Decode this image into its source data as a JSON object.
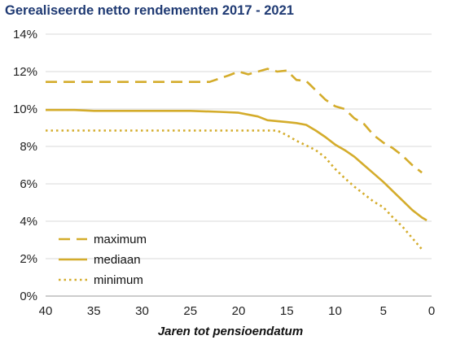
{
  "chart_data": {
    "type": "line",
    "title": "Gerealiseerde netto rendementen 2017 - 2021",
    "xlabel": "Jaren tot pensioendatum",
    "ylabel": "",
    "xlim": [
      40,
      0
    ],
    "x_reversed": true,
    "ylim": [
      0,
      14
    ],
    "x_ticks": [
      40,
      35,
      30,
      25,
      20,
      15,
      10,
      5,
      0
    ],
    "y_ticks": [
      0,
      2,
      4,
      6,
      8,
      10,
      12,
      14
    ],
    "y_tick_labels": [
      "0%",
      "2%",
      "4%",
      "6%",
      "8%",
      "10%",
      "12%",
      "14%"
    ],
    "grid": "horizontal",
    "legend_position": "bottom-left",
    "series": [
      {
        "name": "maximum",
        "style": "dashed",
        "color": "#d4ac2b",
        "points": [
          [
            40,
            11.45
          ],
          [
            35,
            11.45
          ],
          [
            30,
            11.45
          ],
          [
            25,
            11.45
          ],
          [
            23,
            11.45
          ],
          [
            21,
            11.8
          ],
          [
            20,
            12.0
          ],
          [
            19,
            11.85
          ],
          [
            18,
            12.0
          ],
          [
            17,
            12.15
          ],
          [
            16,
            12.0
          ],
          [
            15,
            12.05
          ],
          [
            14,
            11.55
          ],
          [
            13,
            11.5
          ],
          [
            12,
            11.0
          ],
          [
            11,
            10.5
          ],
          [
            10,
            10.15
          ],
          [
            9,
            10.0
          ],
          [
            8,
            9.5
          ],
          [
            7,
            9.2
          ],
          [
            6,
            8.6
          ],
          [
            5,
            8.2
          ],
          [
            4,
            7.9
          ],
          [
            3,
            7.5
          ],
          [
            2,
            7.0
          ],
          [
            1,
            6.6
          ]
        ]
      },
      {
        "name": "mediaan",
        "style": "solid",
        "color": "#d4ac2b",
        "points": [
          [
            40,
            9.95
          ],
          [
            37,
            9.95
          ],
          [
            35,
            9.9
          ],
          [
            30,
            9.9
          ],
          [
            25,
            9.9
          ],
          [
            22,
            9.85
          ],
          [
            20,
            9.8
          ],
          [
            18,
            9.6
          ],
          [
            17,
            9.4
          ],
          [
            15,
            9.3
          ],
          [
            14,
            9.25
          ],
          [
            13,
            9.15
          ],
          [
            12,
            8.85
          ],
          [
            11,
            8.5
          ],
          [
            10,
            8.1
          ],
          [
            9,
            7.8
          ],
          [
            8,
            7.45
          ],
          [
            7,
            7.0
          ],
          [
            6,
            6.55
          ],
          [
            5,
            6.1
          ],
          [
            4,
            5.6
          ],
          [
            3,
            5.1
          ],
          [
            2,
            4.6
          ],
          [
            1,
            4.2
          ],
          [
            0.5,
            4.05
          ]
        ]
      },
      {
        "name": "minimum",
        "style": "dotted",
        "color": "#d4ac2b",
        "points": [
          [
            40,
            8.85
          ],
          [
            35,
            8.85
          ],
          [
            30,
            8.85
          ],
          [
            25,
            8.85
          ],
          [
            20,
            8.85
          ],
          [
            16,
            8.85
          ],
          [
            15,
            8.6
          ],
          [
            14,
            8.3
          ],
          [
            13,
            8.05
          ],
          [
            12,
            7.8
          ],
          [
            11,
            7.4
          ],
          [
            10,
            6.8
          ],
          [
            9,
            6.3
          ],
          [
            8,
            5.85
          ],
          [
            7,
            5.45
          ],
          [
            6,
            5.05
          ],
          [
            5,
            4.75
          ],
          [
            4,
            4.2
          ],
          [
            3,
            3.7
          ],
          [
            2,
            3.1
          ],
          [
            1,
            2.5
          ]
        ]
      }
    ]
  }
}
